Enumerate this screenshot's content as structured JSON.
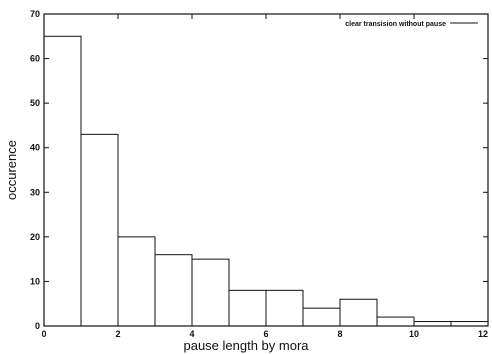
{
  "chart_data": {
    "type": "bar",
    "xlabel": "pause length by mora",
    "ylabel": "occurence",
    "xlim": [
      0,
      12
    ],
    "ylim": [
      0,
      70
    ],
    "x_ticks": [
      "0",
      "2",
      "4",
      "6",
      "8",
      "10",
      "12"
    ],
    "y_ticks": [
      "0",
      "10",
      "20",
      "30",
      "40",
      "50",
      "60",
      "70"
    ],
    "legend": {
      "position": "top-right",
      "label": "clear transision without pause"
    },
    "bins": [
      {
        "x0": 0,
        "x1": 1,
        "value": 65
      },
      {
        "x0": 1,
        "x1": 2,
        "value": 43
      },
      {
        "x0": 2,
        "x1": 3,
        "value": 20
      },
      {
        "x0": 3,
        "x1": 4,
        "value": 16
      },
      {
        "x0": 4,
        "x1": 5,
        "value": 15
      },
      {
        "x0": 5,
        "x1": 6,
        "value": 8
      },
      {
        "x0": 6,
        "x1": 7,
        "value": 8
      },
      {
        "x0": 7,
        "x1": 8,
        "value": 4
      },
      {
        "x0": 8,
        "x1": 9,
        "value": 6
      },
      {
        "x0": 9,
        "x1": 10,
        "value": 2
      },
      {
        "x0": 10,
        "x1": 11,
        "value": 1
      },
      {
        "x0": 11,
        "x1": 12,
        "value": 1
      }
    ]
  }
}
